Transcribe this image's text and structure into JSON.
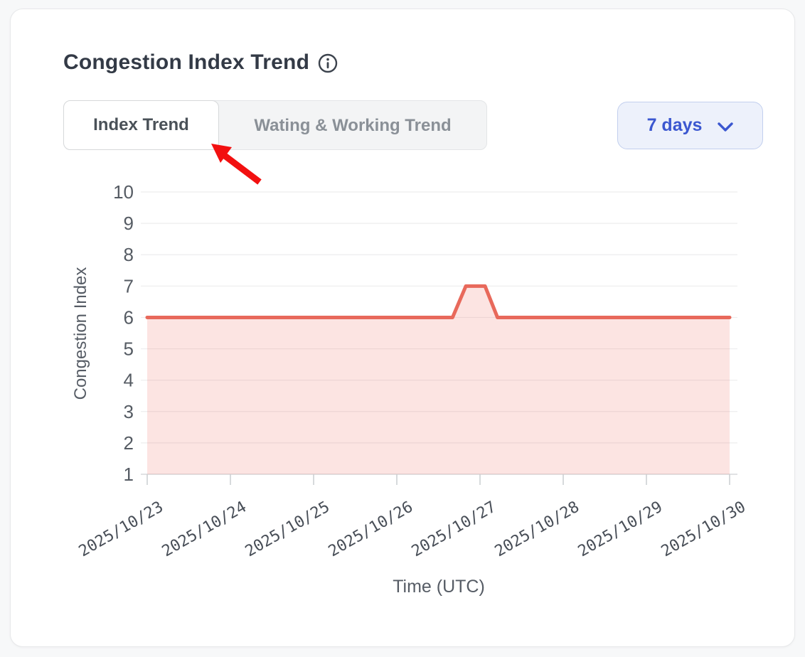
{
  "card": {
    "title": "Congestion Index Trend"
  },
  "tabs": [
    {
      "label": "Index Trend",
      "active": true
    },
    {
      "label": "Wating & Working Trend",
      "active": false
    }
  ],
  "range_select": {
    "value": "7 days",
    "icon": "chevron-down-icon"
  },
  "annotation": {
    "type": "arrow",
    "color": "#f21010",
    "points_at": "Index Trend tab"
  },
  "chart_data": {
    "type": "area",
    "title": "Congestion Index Trend",
    "xlabel": "Time (UTC)",
    "ylabel": "Congestion Index",
    "x_tick_labels": [
      "2025/10/23",
      "2025/10/24",
      "2025/10/25",
      "2025/10/26",
      "2025/10/27",
      "2025/10/28",
      "2025/10/29",
      "2025/10/30"
    ],
    "ylim": [
      1,
      10
    ],
    "y_ticks": [
      1,
      2,
      3,
      4,
      5,
      6,
      7,
      8,
      9,
      10
    ],
    "x_range_days": [
      0,
      7
    ],
    "grid": true,
    "legend": "none",
    "series": [
      {
        "name": "Congestion Index",
        "points": [
          {
            "x_days": 0.0,
            "time": "2025/10/23 00:00",
            "value": 6
          },
          {
            "x_days": 3.67,
            "time": "2025/10/26 16:00",
            "value": 6
          },
          {
            "x_days": 3.83,
            "time": "2025/10/26 20:00",
            "value": 7
          },
          {
            "x_days": 4.06,
            "time": "2025/10/27 01:30",
            "value": 7
          },
          {
            "x_days": 4.21,
            "time": "2025/10/27 05:00",
            "value": 6
          },
          {
            "x_days": 7.0,
            "time": "2025/10/30 00:00",
            "value": 6
          }
        ],
        "line_color": "#e8695b",
        "fill_color": "rgba(238,106,95,0.18)"
      }
    ],
    "colors": {
      "gridline": "#ededee",
      "axis_line": "#d7d9dc",
      "tick": "#cdd0d4",
      "y_tick_label": "#555b63",
      "x_tick_label": "#484e57",
      "axis_title": "#565c65"
    }
  }
}
